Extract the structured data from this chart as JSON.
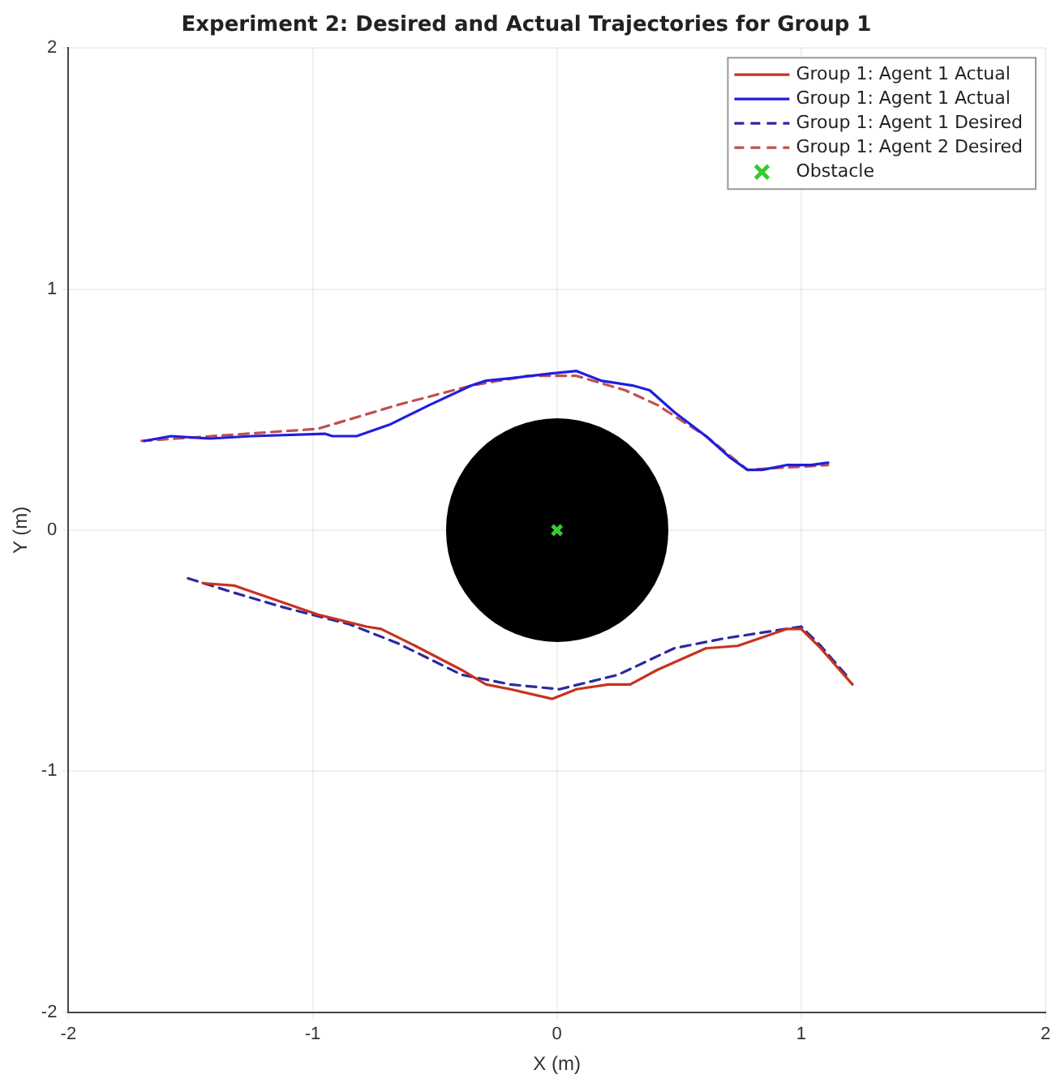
{
  "chart_data": {
    "type": "line",
    "title": "Experiment 2: Desired and Actual Trajectories for Group 1",
    "xlabel": "X (m)",
    "ylabel": "Y (m)",
    "xlim": [
      -2,
      2
    ],
    "ylim": [
      -2,
      2
    ],
    "xticks": [
      -2,
      -1,
      0,
      1,
      2
    ],
    "yticks": [
      -2,
      -1,
      0,
      1,
      2
    ],
    "grid": true,
    "legend": "top right",
    "series": [
      {
        "name": "Group 1: Agent 1 Actual",
        "color": "#c8321e",
        "line_style": "solid",
        "marker": "none",
        "x": [
          -1.45,
          -1.32,
          -1.15,
          -0.98,
          -0.78,
          -0.72,
          -0.58,
          -0.39,
          -0.29,
          -0.19,
          -0.02,
          0.08,
          0.21,
          0.3,
          0.41,
          0.61,
          0.74,
          0.94,
          1.0,
          1.08,
          1.14,
          1.21
        ],
        "values": [
          -0.22,
          -0.23,
          -0.29,
          -0.35,
          -0.4,
          -0.41,
          -0.48,
          -0.58,
          -0.64,
          -0.66,
          -0.7,
          -0.66,
          -0.64,
          -0.64,
          -0.58,
          -0.49,
          -0.48,
          -0.41,
          -0.41,
          -0.49,
          -0.56,
          -0.64
        ]
      },
      {
        "name": "Group 1: Agent 1 Actual",
        "color": "#1e1ee0",
        "line_style": "solid",
        "marker": "none",
        "x": [
          -1.69,
          -1.58,
          -1.42,
          -1.25,
          -0.95,
          -0.92,
          -0.82,
          -0.68,
          -0.52,
          -0.35,
          -0.29,
          -0.19,
          -0.02,
          0.08,
          0.18,
          0.31,
          0.38,
          0.48,
          0.61,
          0.71,
          0.78,
          0.84,
          0.94,
          1.04,
          1.11
        ],
        "values": [
          0.37,
          0.39,
          0.38,
          0.39,
          0.4,
          0.39,
          0.39,
          0.44,
          0.52,
          0.6,
          0.62,
          0.63,
          0.65,
          0.66,
          0.62,
          0.6,
          0.58,
          0.49,
          0.39,
          0.3,
          0.25,
          0.25,
          0.27,
          0.27,
          0.28
        ]
      },
      {
        "name": "Group 1: Agent 1 Desired",
        "color": "#2a2aa0",
        "line_style": "dashed",
        "marker": "none",
        "x": [
          -1.51,
          -1.32,
          -1.12,
          -0.85,
          -0.65,
          -0.39,
          -0.19,
          0.01,
          0.25,
          0.48,
          0.68,
          1.0,
          1.08,
          1.2
        ],
        "values": [
          -0.2,
          -0.26,
          -0.32,
          -0.39,
          -0.47,
          -0.6,
          -0.64,
          -0.66,
          -0.6,
          -0.49,
          -0.45,
          -0.4,
          -0.48,
          -0.62
        ]
      },
      {
        "name": "Group 1: Agent 2 Desired",
        "color": "#c05050",
        "line_style": "dashed",
        "marker": "none",
        "x": [
          -1.7,
          -0.98,
          -0.65,
          -0.35,
          -0.12,
          0.08,
          0.28,
          0.41,
          0.61,
          0.78,
          0.94,
          1.11
        ],
        "values": [
          0.37,
          0.42,
          0.52,
          0.6,
          0.64,
          0.64,
          0.58,
          0.52,
          0.39,
          0.25,
          0.26,
          0.27
        ]
      },
      {
        "name": "Obstacle",
        "type": "scatter",
        "color": "#33cc33",
        "marker": "cross",
        "x": [
          0
        ],
        "values": [
          0
        ]
      }
    ]
  }
}
